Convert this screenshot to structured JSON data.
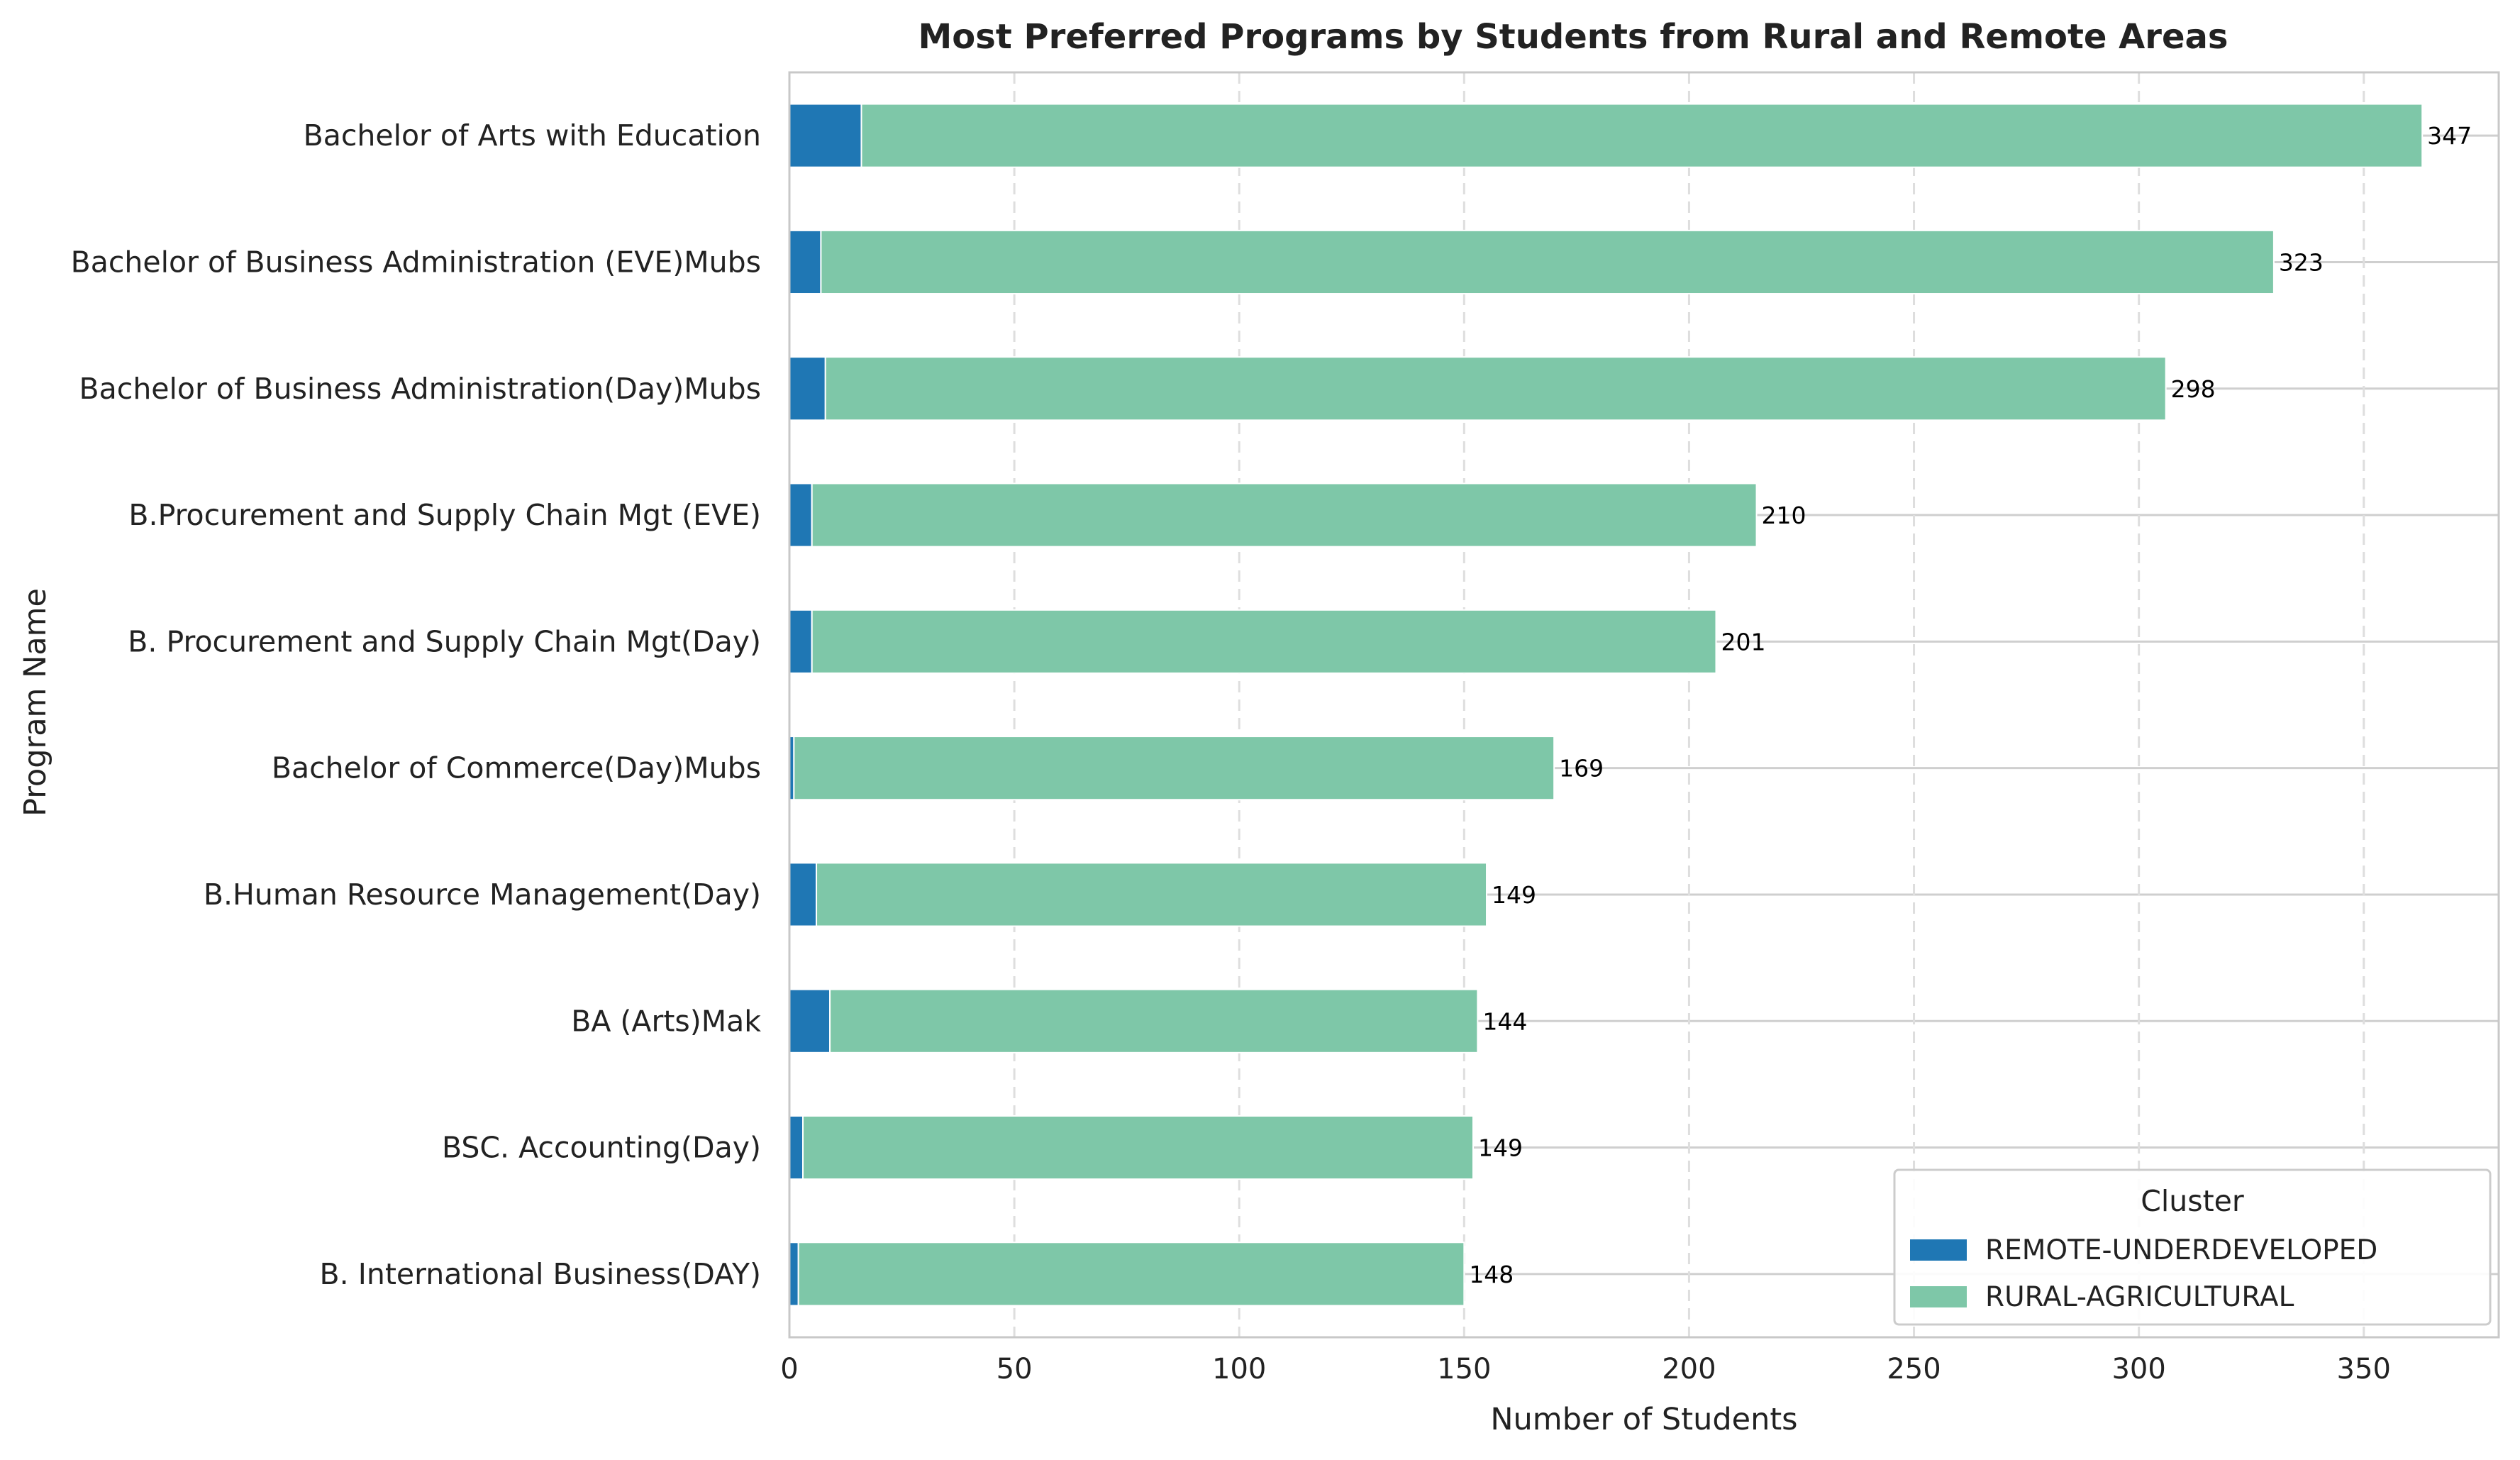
{
  "chart_data": {
    "type": "bar",
    "orientation": "horizontal",
    "stacked": true,
    "title": "Most Preferred Programs by Students from Rural and Remote Areas",
    "xlabel": "Number of Students",
    "ylabel": "Program Name",
    "xlim": [
      0,
      380
    ],
    "xticks": [
      0,
      50,
      100,
      150,
      200,
      250,
      300,
      350
    ],
    "grid": "x-dashed",
    "legend": {
      "title": "Cluster",
      "placement": "bottom-right"
    },
    "categories": [
      "Bachelor of Arts with Education",
      "Bachelor of Business Administration (EVE)Mubs",
      "Bachelor of Business Administration(Day)Mubs",
      "B.Procurement and Supply Chain Mgt (EVE)",
      "B. Procurement and Supply Chain Mgt(Day)",
      "Bachelor of Commerce(Day)Mubs",
      "B.Human Resource Management(Day)",
      "BA (Arts)Mak",
      "BSC. Accounting(Day)",
      "B. International Business(DAY)"
    ],
    "series": [
      {
        "name": "REMOTE-UNDERDEVELOPED",
        "color": "#1f77b4",
        "values": [
          16,
          7,
          8,
          5,
          5,
          1,
          6,
          9,
          3,
          2
        ]
      },
      {
        "name": "RURAL-AGRICULTURAL",
        "color": "#7ec7a8",
        "values": [
          347,
          323,
          298,
          210,
          201,
          169,
          149,
          144,
          149,
          148
        ]
      }
    ]
  }
}
